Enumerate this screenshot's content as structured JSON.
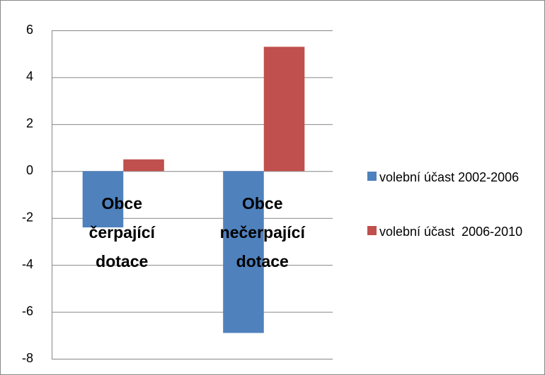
{
  "chart_data": {
    "type": "bar",
    "categories": [
      "Obce čerpající dotace",
      "Obce nečerpající dotace"
    ],
    "series": [
      {
        "name": "volební účast 2002-2006",
        "color": "#4f81bd",
        "values": [
          -2.4,
          -6.9
        ]
      },
      {
        "name": "volební účast  2006-2010",
        "color": "#c0504d",
        "values": [
          0.5,
          5.3
        ]
      }
    ],
    "ylim": [
      -8,
      6
    ],
    "yticks": [
      -8,
      -6,
      -4,
      -2,
      0,
      2,
      4,
      6
    ],
    "grid": true,
    "legend": "right"
  }
}
